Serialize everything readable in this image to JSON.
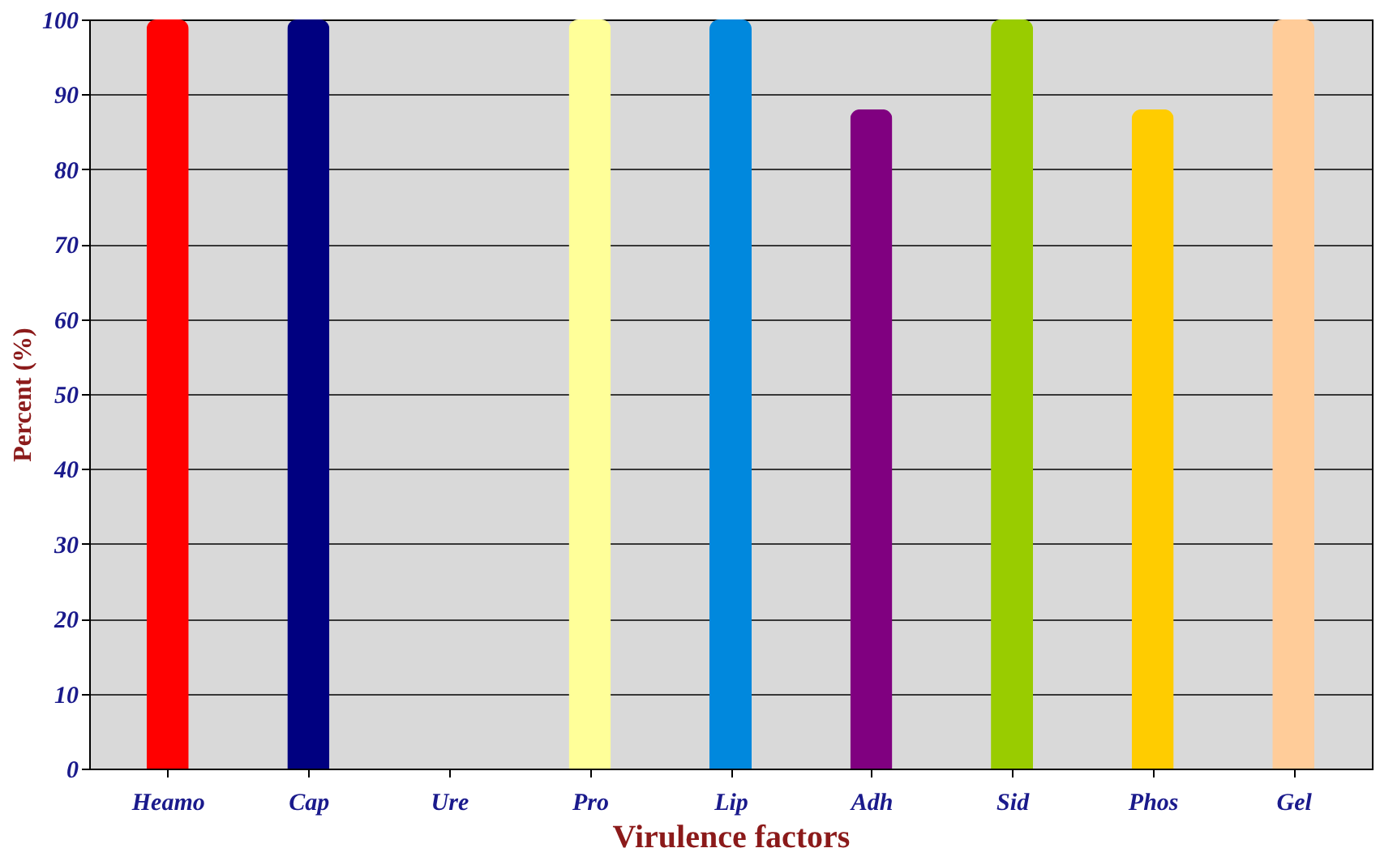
{
  "chart_data": {
    "type": "bar",
    "xlabel": "Virulence factors",
    "ylabel": "Percent (%)",
    "categories": [
      "Heamo",
      "Cap",
      "Ure",
      "Pro",
      "Lip",
      "Adh",
      "Sid",
      "Phos",
      "Gel"
    ],
    "values": [
      100,
      100,
      0,
      100,
      100,
      88,
      100,
      88,
      100
    ],
    "colors": [
      "#ff0000",
      "#000080",
      "#800000",
      "#ffff99",
      "#0088dd",
      "#800080",
      "#99cc00",
      "#ffcc00",
      "#ffcc99"
    ],
    "ylim": [
      0,
      100
    ],
    "yticks": [
      0,
      10,
      20,
      30,
      40,
      50,
      60,
      70,
      80,
      90,
      100
    ],
    "grid": "y"
  }
}
